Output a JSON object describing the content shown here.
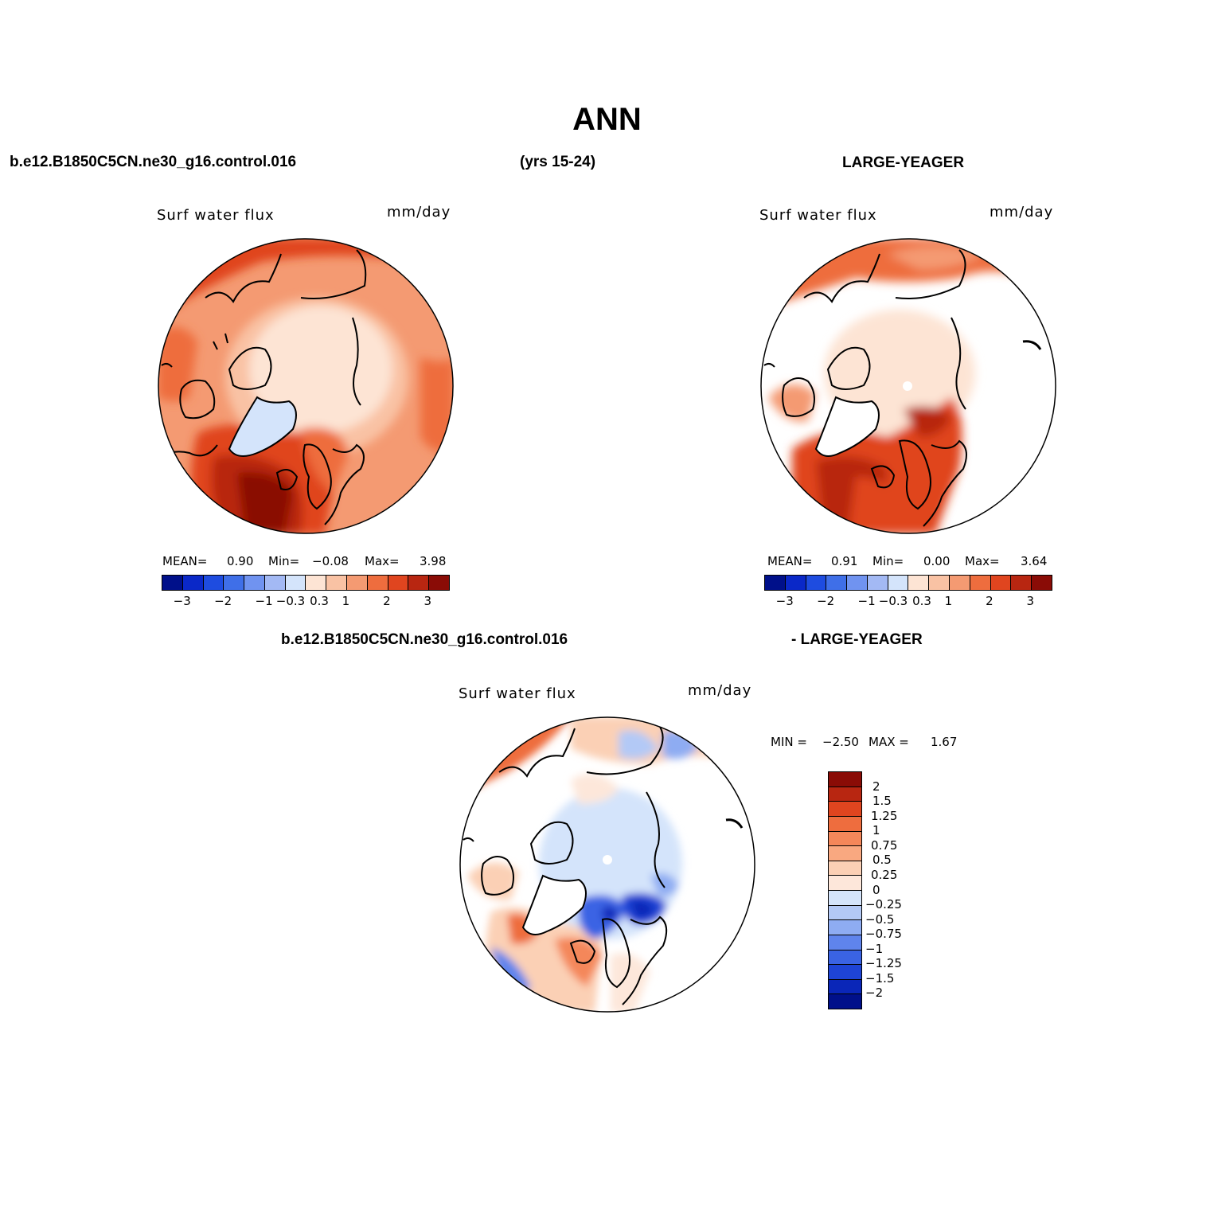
{
  "header": {
    "title": "ANN",
    "case_a": "b.e12.B1850C5CN.ne30_g16.control.016",
    "years": "(yrs 15-24)",
    "case_b": "LARGE-YEAGER",
    "diff_case_a": "b.e12.B1850C5CN.ne30_g16.control.016",
    "diff_case_b": "- LARGE-YEAGER"
  },
  "panels": {
    "left": {
      "variable": "Surf water flux",
      "units": "mm/day",
      "mean_label": "MEAN=",
      "mean_value": "0.90",
      "min_label": "Min=",
      "min_value": "−0.08",
      "max_label": "Max=",
      "max_value": "3.98"
    },
    "right": {
      "variable": "Surf water flux",
      "units": "mm/day",
      "mean_label": "MEAN=",
      "mean_value": "0.91",
      "min_label": "Min=",
      "min_value": "0.00",
      "max_label": "Max=",
      "max_value": "3.64"
    },
    "diff": {
      "variable": "Surf water flux",
      "units": "mm/day",
      "min_label": "MIN =",
      "min_value": "−2.50",
      "max_label": "MAX =",
      "max_value": "1.67"
    }
  },
  "colorbar_main": {
    "colors": [
      "#00108a",
      "#0a28c8",
      "#1e4ce0",
      "#3f6fe8",
      "#7093f0",
      "#a3b9f4",
      "#d4e4fb",
      "#fde4d4",
      "#f9c2a4",
      "#f49a72",
      "#ee6d3e",
      "#e0451f",
      "#b82611",
      "#8a0c06"
    ],
    "ticks": [
      "−3",
      "−2",
      "−1",
      "−0.3",
      "0.3",
      "1",
      "2",
      "3"
    ]
  },
  "colorbar_diff": {
    "colors": [
      "#8a0c06",
      "#b82611",
      "#e0451f",
      "#ee6d3e",
      "#f4875a",
      "#f9a880",
      "#fbd0b5",
      "#fde7da",
      "#d4e4fb",
      "#b3c9f6",
      "#8eacf2",
      "#5f84ec",
      "#3a63e4",
      "#1e44d6",
      "#0a26b8",
      "#00108a"
    ],
    "ticks": [
      "2",
      "1.5",
      "1.25",
      "1",
      "0.75",
      "0.5",
      "0.25",
      "0",
      "−0.25",
      "−0.5",
      "−0.75",
      "−1",
      "−1.25",
      "−1.5",
      "−2"
    ]
  }
}
